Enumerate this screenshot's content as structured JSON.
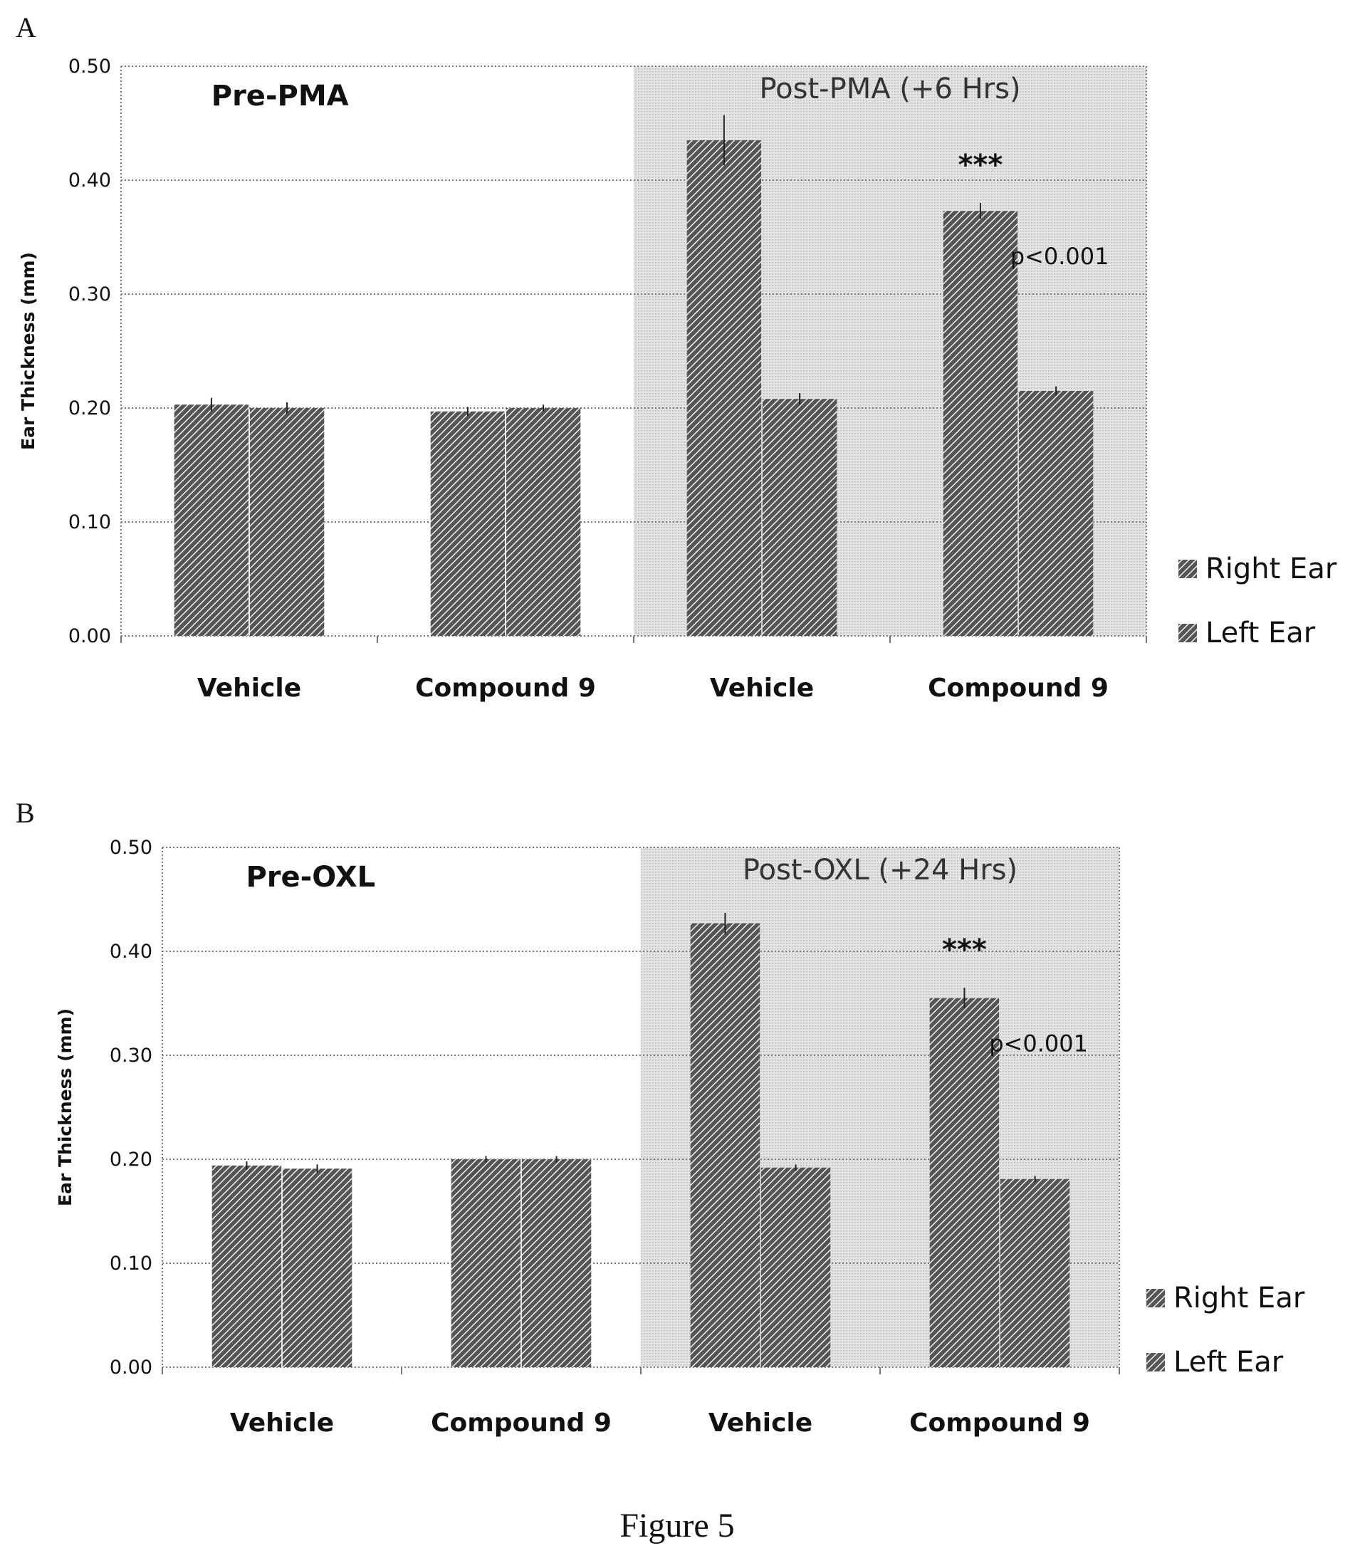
{
  "figure_caption": "Figure 5",
  "colors": {
    "bar_fill": "#555555",
    "bar_hatch": "#f2f2f2",
    "post_background": "#e3e3e3",
    "post_dots": "#b9b9b9",
    "grid": "#777777",
    "text": "#111111"
  },
  "chart_data": [
    {
      "type": "bar",
      "panel_label": "A",
      "ylabel": "Ear Thickness (mm)",
      "ylim": [
        0,
        0.5
      ],
      "yticks": [
        "0.00",
        "0.10",
        "0.20",
        "0.30",
        "0.40",
        "0.50"
      ],
      "categories": [
        "Vehicle",
        "Compound 9",
        "Vehicle",
        "Compound 9"
      ],
      "series": [
        {
          "name": "Right Ear",
          "values": [
            0.203,
            0.197,
            0.435,
            0.373
          ],
          "errors": [
            0.006,
            0.004,
            0.022,
            0.007
          ]
        },
        {
          "name": "Left Ear",
          "values": [
            0.2,
            0.2,
            0.208,
            0.215
          ],
          "errors": [
            0.005,
            0.003,
            0.005,
            0.004
          ]
        }
      ],
      "regions": [
        {
          "label": "Pre-PMA",
          "categories": [
            0,
            1
          ],
          "shaded": false
        },
        {
          "label": "Post-PMA (+6 Hrs)",
          "categories": [
            2,
            3
          ],
          "shaded": true
        }
      ],
      "annotations": [
        {
          "text": "***",
          "category": 3,
          "series": 0
        },
        {
          "text": "p<0.001",
          "category": 3,
          "series": 1
        }
      ],
      "legend": {
        "placement": "right"
      },
      "grid": true
    },
    {
      "type": "bar",
      "panel_label": "B",
      "ylabel": "Ear Thickness (mm)",
      "ylim": [
        0,
        0.5
      ],
      "yticks": [
        "0.00",
        "0.10",
        "0.20",
        "0.30",
        "0.40",
        "0.50"
      ],
      "categories": [
        "Vehicle",
        "Compound 9",
        "Vehicle",
        "Compound 9"
      ],
      "series": [
        {
          "name": "Right Ear",
          "values": [
            0.194,
            0.2,
            0.427,
            0.355
          ],
          "errors": [
            0.004,
            0.003,
            0.01,
            0.01
          ]
        },
        {
          "name": "Left Ear",
          "values": [
            0.191,
            0.2,
            0.192,
            0.181
          ],
          "errors": [
            0.004,
            0.003,
            0.003,
            0.003
          ]
        }
      ],
      "regions": [
        {
          "label": "Pre-OXL",
          "categories": [
            0,
            1
          ],
          "shaded": false
        },
        {
          "label": "Post-OXL (+24 Hrs)",
          "categories": [
            2,
            3
          ],
          "shaded": true
        }
      ],
      "annotations": [
        {
          "text": "***",
          "category": 3,
          "series": 0
        },
        {
          "text": "p<0.001",
          "category": 3,
          "series": 1
        }
      ],
      "legend": {
        "placement": "right"
      },
      "grid": true
    }
  ]
}
